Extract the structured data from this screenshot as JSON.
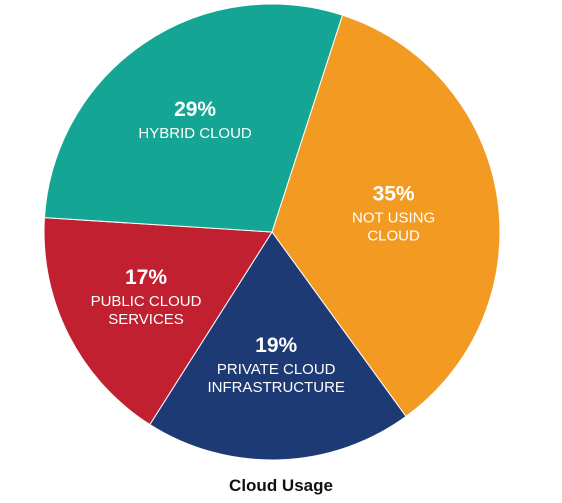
{
  "chart_data": {
    "type": "pie",
    "title": "Cloud Usage",
    "slices": [
      {
        "pct_label": "35%",
        "label_lines": [
          "NOT USING",
          "CLOUD"
        ],
        "value": 35,
        "color": "#f39a23"
      },
      {
        "pct_label": "19%",
        "label_lines": [
          "PRIVATE CLOUD",
          "INFRASTRUCTURE"
        ],
        "value": 19,
        "color": "#1d3a75"
      },
      {
        "pct_label": "17%",
        "label_lines": [
          "PUBLIC CLOUD",
          "SERVICES"
        ],
        "value": 17,
        "color": "#c0202f"
      },
      {
        "pct_label": "29%",
        "label_lines": [
          "HYBRID CLOUD"
        ],
        "value": 29,
        "color": "#14a594"
      }
    ]
  }
}
